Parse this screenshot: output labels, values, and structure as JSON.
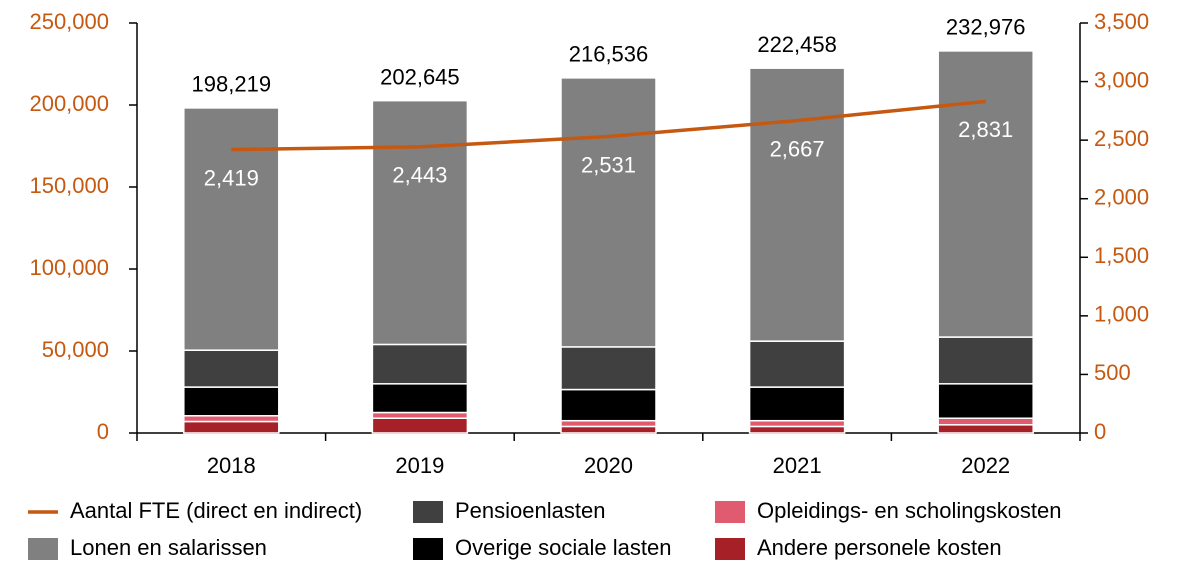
{
  "chart_data": {
    "type": "stacked_bar_line",
    "categories": [
      "2018",
      "2019",
      "2020",
      "2021",
      "2022"
    ],
    "series": [
      {
        "name": "Andere personele kosten",
        "color": "#a52027",
        "values": [
          7000,
          9000,
          4000,
          4000,
          5000
        ]
      },
      {
        "name": "Opleidings- en scholingskosten",
        "color": "#e05a70",
        "values": [
          3500,
          3500,
          3500,
          3500,
          4000
        ]
      },
      {
        "name": "Overige sociale lasten",
        "color": "#000000",
        "values": [
          17500,
          17500,
          19000,
          20500,
          21000
        ]
      },
      {
        "name": "Pensioenlasten",
        "color": "#404040",
        "values": [
          22500,
          24000,
          26000,
          28000,
          28500
        ]
      },
      {
        "name": "Lonen en salarissen",
        "color": "#808080",
        "values": [
          147719,
          148645,
          164036,
          166458,
          174476
        ]
      },
      {
        "name": "Aantal FTE (direct en indirect)",
        "color": "#c65911",
        "axis": "y2",
        "type": "line",
        "values": [
          2419,
          2443,
          2531,
          2667,
          2831
        ],
        "value_labels": [
          "2,419",
          "2,443",
          "2,531",
          "2,667",
          "2,831"
        ]
      }
    ],
    "totals": [
      198219,
      202645,
      216536,
      222458,
      232976
    ],
    "total_labels": [
      "198,219",
      "202,645",
      "216,536",
      "222,458",
      "232,976"
    ],
    "ylim": [
      0,
      250000
    ],
    "yticks": [
      0,
      {
        "value": 50000,
        "label": "50,000"
      },
      {
        "value": 100000,
        "label": "100,000"
      },
      {
        "value": 150000,
        "label": "150,000"
      },
      {
        "value": 200000,
        "label": "200,000"
      },
      {
        "value": 250000,
        "label": "250,000"
      }
    ],
    "y2lim": [
      0,
      3500
    ],
    "y2ticks": [
      0,
      500,
      {
        "value": 1000,
        "label": "1,000"
      },
      {
        "value": 1500,
        "label": "1,500"
      },
      {
        "value": 2000,
        "label": "2,000"
      },
      {
        "value": 2500,
        "label": "2,500"
      },
      {
        "value": 3000,
        "label": "3,000"
      },
      {
        "value": 3500,
        "label": "3,500"
      }
    ],
    "axis_color": "#c65911",
    "legend_order": [
      5,
      3,
      1,
      4,
      2,
      0
    ]
  }
}
